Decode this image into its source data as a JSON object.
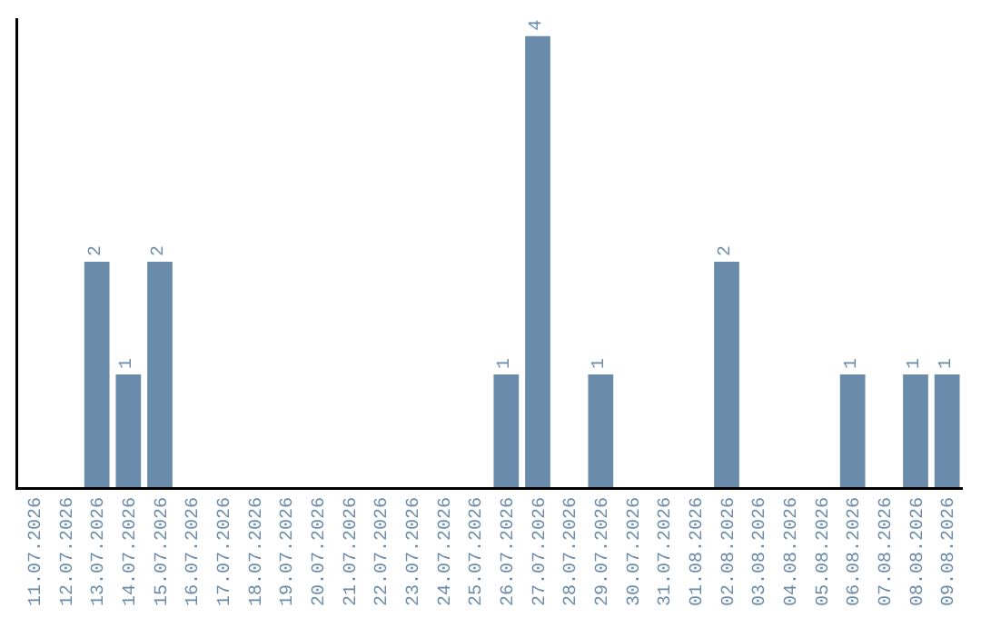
{
  "chart_data": {
    "type": "bar",
    "categories": [
      "11.07.2026",
      "12.07.2026",
      "13.07.2026",
      "14.07.2026",
      "15.07.2026",
      "16.07.2026",
      "17.07.2026",
      "18.07.2026",
      "19.07.2026",
      "20.07.2026",
      "21.07.2026",
      "22.07.2026",
      "23.07.2026",
      "24.07.2026",
      "25.07.2026",
      "26.07.2026",
      "27.07.2026",
      "28.07.2026",
      "29.07.2026",
      "30.07.2026",
      "31.07.2026",
      "01.08.2026",
      "02.08.2026",
      "03.08.2026",
      "04.08.2026",
      "05.08.2026",
      "06.08.2026",
      "07.08.2026",
      "08.08.2026",
      "09.08.2026"
    ],
    "values": [
      0,
      0,
      2,
      1,
      2,
      0,
      0,
      0,
      0,
      0,
      0,
      0,
      0,
      0,
      0,
      1,
      4,
      0,
      1,
      0,
      0,
      0,
      2,
      0,
      0,
      0,
      1,
      0,
      1,
      1
    ],
    "value_labels": [
      null,
      null,
      "2",
      "1",
      "2",
      null,
      null,
      null,
      null,
      null,
      null,
      null,
      null,
      null,
      null,
      "1",
      "4",
      null,
      "1",
      null,
      null,
      null,
      "2",
      null,
      null,
      null,
      "1",
      null,
      "1",
      "1"
    ],
    "color": "#6a8caa",
    "ylim": [
      0,
      4.16
    ],
    "tick_labels": "x"
  }
}
